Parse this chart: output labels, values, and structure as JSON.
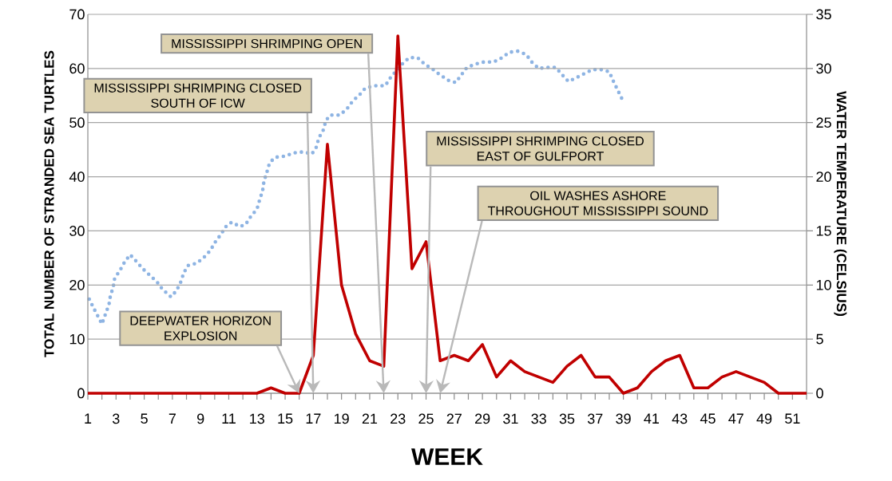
{
  "chart_data": {
    "type": "line",
    "xlabel": "WEEK",
    "ylabel": "TOTAL NUMBER OF STRANDED SEA TURTLES",
    "y2label": "WATER TEMPERATURE (CELSIUS)",
    "x": [
      1,
      2,
      3,
      4,
      5,
      6,
      7,
      8,
      9,
      10,
      11,
      12,
      13,
      14,
      15,
      16,
      17,
      18,
      19,
      20,
      21,
      22,
      23,
      24,
      25,
      26,
      27,
      28,
      29,
      30,
      31,
      32,
      33,
      34,
      35,
      36,
      37,
      38,
      39,
      40,
      41,
      42,
      43,
      44,
      45,
      46,
      47,
      48,
      49,
      50,
      51,
      52
    ],
    "xlim": [
      1,
      52
    ],
    "xticks": [
      1,
      {
        "value": 2,
        "label": null
      },
      3,
      {
        "value": 4,
        "label": null
      },
      5,
      {
        "value": 6,
        "label": null
      },
      7,
      {
        "value": 8,
        "label": null
      },
      9,
      {
        "value": 10,
        "label": null
      },
      11,
      {
        "value": 12,
        "label": null
      },
      13,
      {
        "value": 14,
        "label": null
      },
      15,
      {
        "value": 16,
        "label": null
      },
      17,
      {
        "value": 18,
        "label": null
      },
      19,
      {
        "value": 20,
        "label": null
      },
      21,
      {
        "value": 22,
        "label": null
      },
      23,
      {
        "value": 24,
        "label": null
      },
      25,
      {
        "value": 26,
        "label": null
      },
      27,
      {
        "value": 28,
        "label": null
      },
      29,
      {
        "value": 30,
        "label": null
      },
      31,
      {
        "value": 32,
        "label": null
      },
      33,
      {
        "value": 34,
        "label": null
      },
      35,
      {
        "value": 36,
        "label": null
      },
      37,
      {
        "value": 38,
        "label": null
      },
      39,
      {
        "value": 40,
        "label": null
      },
      41,
      {
        "value": 42,
        "label": null
      },
      43,
      {
        "value": 44,
        "label": null
      },
      45,
      {
        "value": 46,
        "label": null
      },
      47,
      {
        "value": 48,
        "label": null
      },
      49,
      {
        "value": 50,
        "label": null
      },
      51,
      {
        "value": 52,
        "label": null
      }
    ],
    "ylim": [
      0,
      70
    ],
    "yticks": [
      0,
      10,
      20,
      30,
      40,
      50,
      60,
      70
    ],
    "y2lim": [
      0,
      35
    ],
    "y2ticks": [
      0,
      5,
      10,
      15,
      20,
      25,
      30,
      35
    ],
    "grid": "y",
    "marker": "none",
    "series": [
      {
        "color": "#c00000",
        "line_style": "solid",
        "values": [
          0,
          0,
          0,
          0,
          0,
          0,
          0,
          0,
          0,
          0,
          0,
          0,
          0,
          1,
          0,
          0,
          7,
          46,
          20,
          11,
          6,
          5,
          66,
          23,
          28,
          6,
          7,
          6,
          9,
          3,
          6,
          4,
          3,
          2,
          5,
          7,
          3,
          3,
          0,
          1,
          4,
          6,
          7,
          1,
          1,
          3,
          4,
          3,
          2,
          0,
          0,
          0
        ]
      },
      {
        "color": "#8eb4e3",
        "line_style": "dotted",
        "axis": "y2",
        "x": [
          1.1,
          1.4,
          2.0,
          2.5,
          2.6,
          2.8,
          2.9,
          3.3,
          3.6,
          4.0,
          4.5,
          4.9,
          5.4,
          5.9,
          6.3,
          6.9,
          7.3,
          7.6,
          7.8,
          8.1,
          8.7,
          9.2,
          9.7,
          10.0,
          10.4,
          10.8,
          11.2,
          11.8,
          12.2,
          12.6,
          13.0,
          13.2,
          13.4,
          13.5,
          13.7,
          13.9,
          14.3,
          15.0,
          15.6,
          16.3,
          16.9,
          17.2,
          17.4,
          17.7,
          17.9,
          18.2,
          18.9,
          19.4,
          19.8,
          20.3,
          20.7,
          21.4,
          22.1,
          22.5,
          22.9,
          23.3,
          23.8,
          24.4,
          24.9,
          25.5,
          26.0,
          26.6,
          27.1,
          27.5,
          27.9,
          28.5,
          29.1,
          29.8,
          30.4,
          30.9,
          31.5,
          32.1,
          32.5,
          33.0,
          33.6,
          34.2,
          34.6,
          35.1,
          35.6,
          36.2,
          36.8,
          37.4,
          38.0,
          38.3,
          38.6,
          38.9
        ],
        "values": [
          8.7,
          7.9,
          6.4,
          8.2,
          9.0,
          9.8,
          10.6,
          11.4,
          12.1,
          12.8,
          12.1,
          11.5,
          10.9,
          10.3,
          9.6,
          8.9,
          9.5,
          10.3,
          11.1,
          11.8,
          12.0,
          12.5,
          13.2,
          13.9,
          14.6,
          15.4,
          15.8,
          15.4,
          15.6,
          16.4,
          17.0,
          17.9,
          18.7,
          19.6,
          20.4,
          21.3,
          21.8,
          21.9,
          22.2,
          22.3,
          22.1,
          22.7,
          23.6,
          24.3,
          25.2,
          25.7,
          25.7,
          26.3,
          27.0,
          27.6,
          28.2,
          28.4,
          28.4,
          29.2,
          29.8,
          30.4,
          31.0,
          31.0,
          30.4,
          29.9,
          29.4,
          28.9,
          28.7,
          29.4,
          30.1,
          30.4,
          30.6,
          30.6,
          31.0,
          31.5,
          31.6,
          31.3,
          30.6,
          30.0,
          30.1,
          30.1,
          29.5,
          28.8,
          29.1,
          29.5,
          29.9,
          29.9,
          29.7,
          28.8,
          28.0,
          27.2
        ]
      }
    ],
    "annotations": [
      "DEEPWATER HORIZON\nEXPLOSION",
      "MISSISSIPPI SHRIMPING CLOSED\nSOUTH OF ICW",
      "MISSISSIPPI SHRIMPING OPEN",
      "MISSISSIPPI SHRIMPING CLOSED\nEAST OF GULFPORT",
      "OIL WASHES ASHORE\nTHROUGHOUT MISSISSIPPI SOUND"
    ]
  }
}
